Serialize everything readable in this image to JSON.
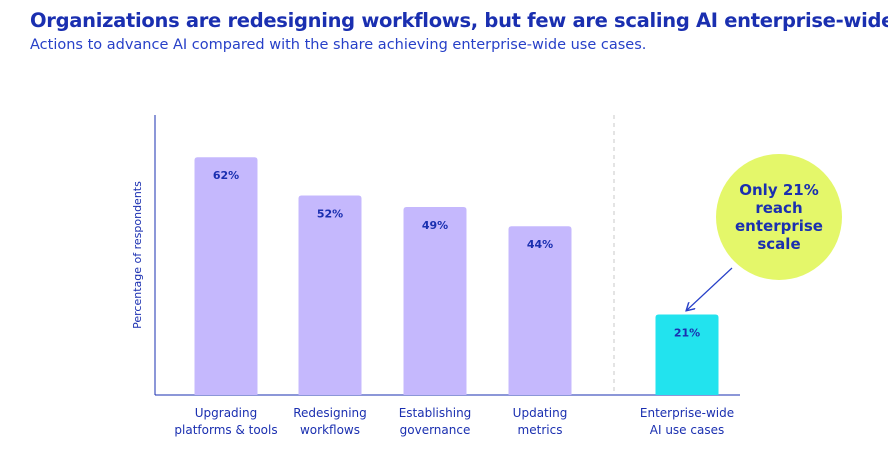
{
  "header": {
    "title": "Organizations are redesigning workflows, but few are scaling AI enterprise-wide.",
    "subtitle": "Actions to advance AI compared with the share achieving enterprise-wide use cases."
  },
  "callout": {
    "lines": [
      "Only 21%",
      "reach",
      "enterprise",
      "scale"
    ]
  },
  "colors": {
    "title": "#1a2fb0",
    "axis": "#1a2fb0",
    "bar_primary": "#c5b8fd",
    "bar_highlight": "#22e3ee",
    "callout_fill": "#e4f76a",
    "callout_text": "#1a2fb0",
    "divider": "#c8c8c8"
  },
  "chart_data": {
    "type": "bar",
    "ylabel": "Percentage of respondents",
    "xlabel": "",
    "ylim": [
      0,
      73
    ],
    "grid": false,
    "legend": "none",
    "categories": [
      [
        "Upgrading",
        "platforms & tools"
      ],
      [
        "Redesigning",
        "workflows"
      ],
      [
        "Establishing",
        "governance"
      ],
      [
        "Updating",
        "metrics"
      ],
      [
        "Enterprise-wide",
        "AI use cases"
      ]
    ],
    "values": [
      62,
      52,
      49,
      44,
      21
    ],
    "data_labels": [
      "62%",
      "52%",
      "49%",
      "44%",
      "21%"
    ],
    "highlight_index": 4
  }
}
